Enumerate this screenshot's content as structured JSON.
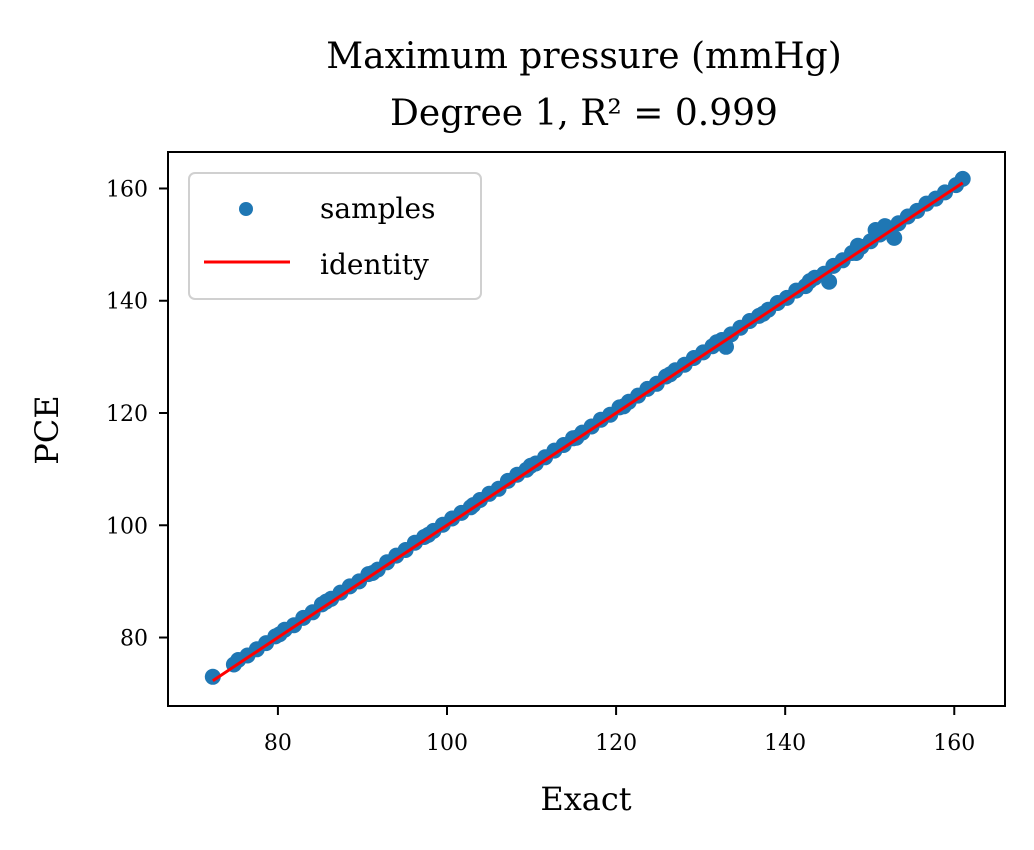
{
  "chart_data": {
    "type": "scatter",
    "title": "Maximum pressure (mmHg)",
    "subtitle": "Degree 1, R² = 0.999",
    "xlabel": "Exact",
    "ylabel": "PCE",
    "xlim": [
      67,
      166
    ],
    "ylim": [
      67.8,
      166.5
    ],
    "xticks": [
      80,
      100,
      120,
      140,
      160
    ],
    "yticks": [
      80,
      100,
      120,
      140,
      160
    ],
    "legend_position": "upper-left",
    "grid": false,
    "colors": {
      "samples": "#1f77b4",
      "identity": "#ff0000"
    },
    "series": [
      {
        "name": "samples",
        "kind": "scatter",
        "points": [
          [
            72.3,
            73.0
          ],
          [
            75.3,
            76.0
          ],
          [
            76.4,
            76.8
          ],
          [
            77.5,
            77.9
          ],
          [
            78.6,
            79.0
          ],
          [
            79.7,
            80.2
          ],
          [
            80.8,
            81.4
          ],
          [
            81.9,
            82.2
          ],
          [
            83.0,
            83.5
          ],
          [
            84.1,
            84.5
          ],
          [
            85.2,
            85.9
          ],
          [
            86.3,
            86.9
          ],
          [
            87.4,
            88.0
          ],
          [
            88.5,
            89.1
          ],
          [
            89.6,
            90.0
          ],
          [
            90.7,
            91.3
          ],
          [
            91.8,
            92.1
          ],
          [
            92.9,
            93.4
          ],
          [
            94.0,
            94.6
          ],
          [
            95.1,
            95.6
          ],
          [
            96.2,
            96.9
          ],
          [
            97.3,
            97.9
          ],
          [
            98.4,
            99.0
          ],
          [
            99.5,
            100.1
          ],
          [
            100.6,
            101.2
          ],
          [
            101.7,
            102.2
          ],
          [
            102.8,
            103.2
          ],
          [
            103.9,
            104.5
          ],
          [
            105.0,
            105.6
          ],
          [
            106.1,
            106.5
          ],
          [
            107.2,
            107.9
          ],
          [
            108.3,
            109.0
          ],
          [
            109.4,
            109.9
          ],
          [
            110.5,
            111.0
          ],
          [
            111.6,
            112.1
          ],
          [
            112.7,
            113.3
          ],
          [
            113.8,
            114.3
          ],
          [
            114.9,
            115.5
          ],
          [
            116.0,
            116.5
          ],
          [
            117.1,
            117.6
          ],
          [
            118.2,
            118.8
          ],
          [
            119.3,
            119.7
          ],
          [
            120.4,
            121.0
          ],
          [
            121.5,
            122.0
          ],
          [
            122.6,
            123.1
          ],
          [
            123.7,
            124.3
          ],
          [
            124.8,
            125.2
          ],
          [
            125.9,
            126.5
          ],
          [
            127.0,
            127.6
          ],
          [
            128.1,
            128.6
          ],
          [
            129.2,
            129.8
          ],
          [
            130.3,
            130.8
          ],
          [
            131.4,
            131.9
          ],
          [
            132.5,
            133.0
          ],
          [
            133.6,
            134.0
          ],
          [
            134.7,
            135.2
          ],
          [
            135.8,
            136.4
          ],
          [
            136.9,
            137.3
          ],
          [
            138.0,
            138.4
          ],
          [
            139.1,
            139.6
          ],
          [
            140.2,
            140.5
          ],
          [
            141.3,
            141.8
          ],
          [
            142.4,
            142.6
          ],
          [
            143.5,
            144.1
          ],
          [
            144.6,
            144.8
          ],
          [
            145.7,
            146.2
          ],
          [
            146.8,
            147.2
          ],
          [
            147.9,
            148.5
          ],
          [
            149.0,
            149.6
          ],
          [
            150.1,
            150.6
          ],
          [
            151.2,
            151.8
          ],
          [
            152.3,
            152.9
          ],
          [
            153.4,
            153.8
          ],
          [
            154.5,
            155.0
          ],
          [
            155.6,
            156.0
          ],
          [
            156.7,
            157.3
          ],
          [
            157.8,
            158.2
          ],
          [
            158.9,
            159.3
          ],
          [
            160.2,
            160.6
          ],
          [
            161.0,
            161.7
          ],
          [
            74.8,
            75.2
          ],
          [
            80.2,
            80.6
          ],
          [
            85.7,
            86.4
          ],
          [
            91.2,
            91.5
          ],
          [
            97.8,
            98.3
          ],
          [
            103.1,
            103.6
          ],
          [
            109.9,
            110.6
          ],
          [
            115.3,
            115.6
          ],
          [
            120.9,
            121.2
          ],
          [
            126.4,
            126.9
          ],
          [
            131.9,
            132.6
          ],
          [
            137.4,
            137.7
          ],
          [
            142.9,
            143.5
          ],
          [
            148.4,
            148.5
          ],
          [
            148.6,
            149.8
          ],
          [
            150.7,
            152.6
          ],
          [
            151.8,
            153.3
          ],
          [
            152.9,
            151.2
          ],
          [
            145.2,
            143.4
          ],
          [
            133.0,
            131.8
          ]
        ]
      },
      {
        "name": "identity",
        "kind": "line",
        "x": [
          72.3,
          161.0
        ],
        "y": [
          72.3,
          161.0
        ]
      }
    ]
  }
}
